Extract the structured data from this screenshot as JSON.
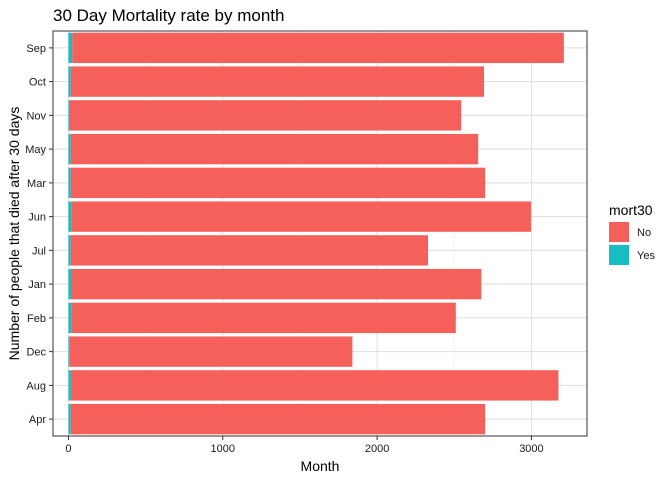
{
  "chart_data": {
    "type": "bar",
    "orientation": "horizontal",
    "stacked": true,
    "title": "30 Day Mortality rate by month",
    "xlabel": "Month",
    "ylabel": "Number of people that died after 30 days",
    "categories": [
      "Sep",
      "Oct",
      "Nov",
      "May",
      "Mar",
      "Jun",
      "Jul",
      "Jan",
      "Feb",
      "Dec",
      "Aug",
      "Apr"
    ],
    "series": [
      {
        "name": "Yes",
        "color": "#18BDC1",
        "values": [
          25,
          15,
          10,
          15,
          15,
          22,
          15,
          20,
          22,
          6,
          16,
          15
        ]
      },
      {
        "name": "No",
        "color": "#F5605B",
        "values": [
          3185,
          2678,
          2535,
          2640,
          2685,
          2975,
          2315,
          2655,
          2488,
          1834,
          3159,
          2685
        ]
      }
    ],
    "xlim": [
      -100,
      3360
    ],
    "xticks": [
      0,
      1000,
      2000,
      3000
    ],
    "xtick_labels": [
      "0",
      "1000",
      "2000",
      "3000"
    ],
    "grid": true,
    "legend": {
      "title": "mort30",
      "position": "right",
      "entries": [
        {
          "label": "No",
          "color": "#F5605B"
        },
        {
          "label": "Yes",
          "color": "#18BDC1"
        }
      ]
    }
  }
}
